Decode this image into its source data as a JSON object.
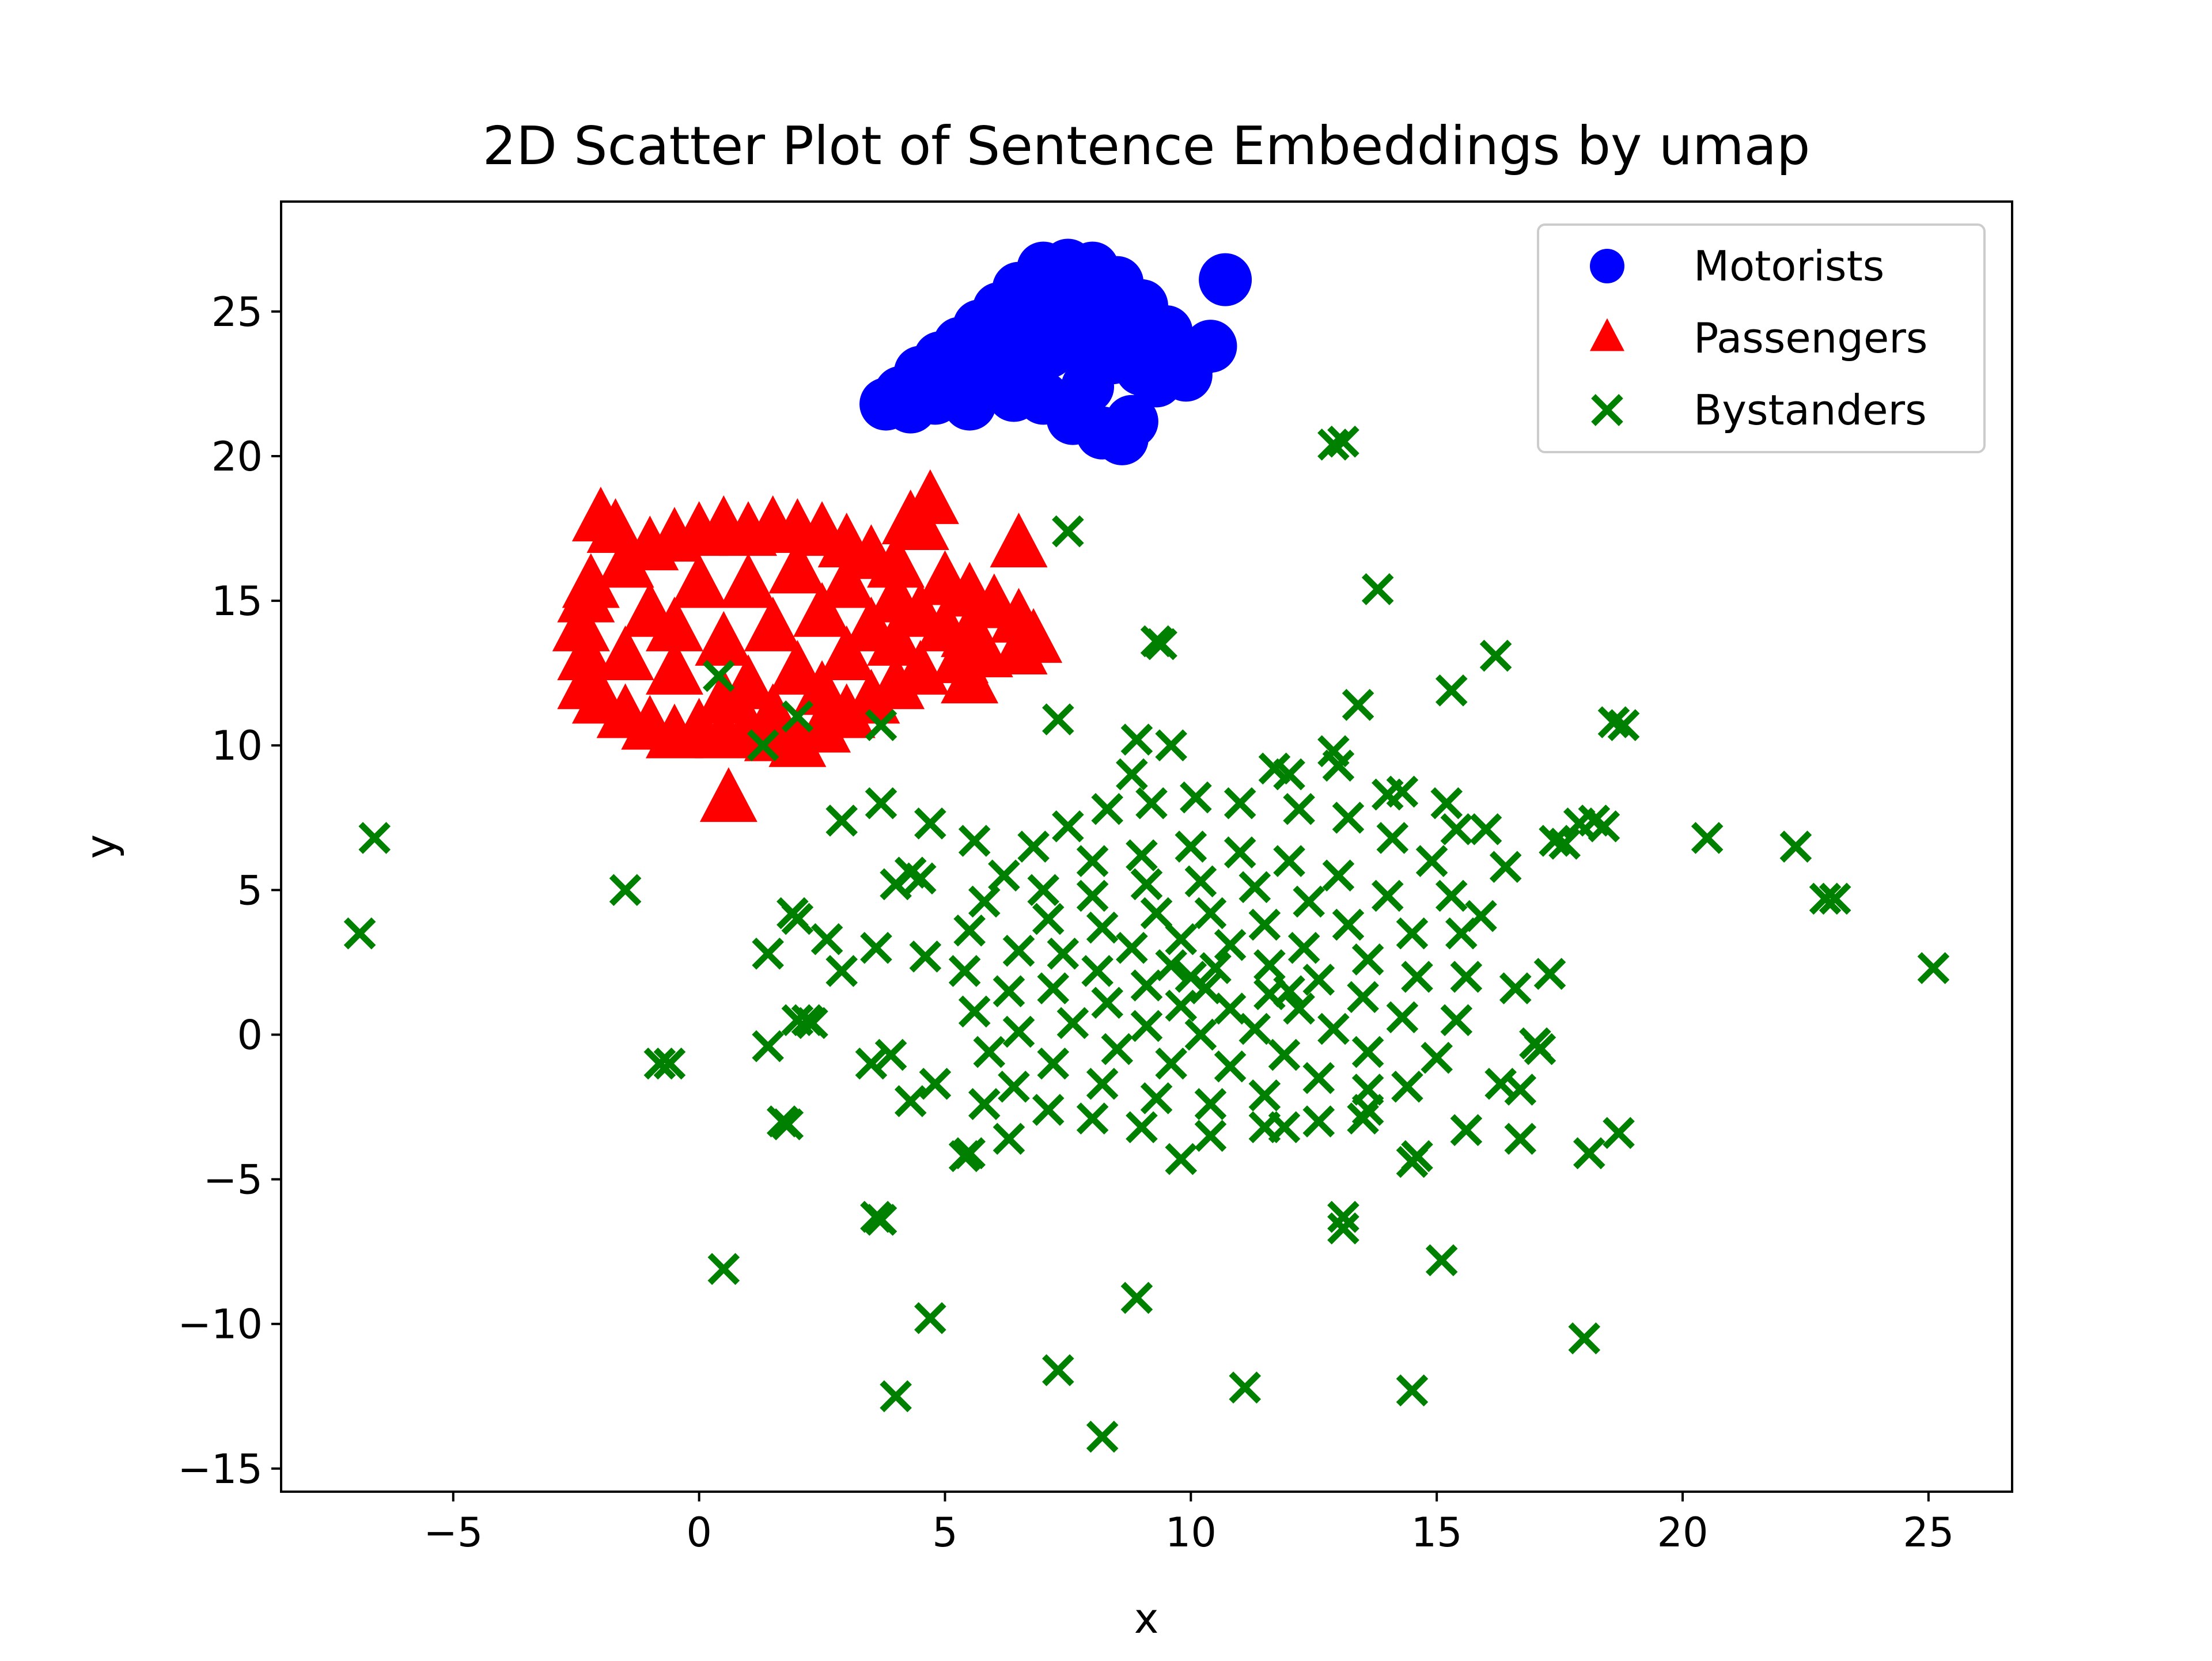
{
  "chart_data": {
    "type": "scatter",
    "title": "2D Scatter Plot of Sentence Embeddings by umap",
    "xlabel": "x",
    "ylabel": "y",
    "xlim": [
      -8.5,
      26.7
    ],
    "ylim": [
      -15.8,
      28.8
    ],
    "xticks": [
      -5,
      0,
      5,
      10,
      15,
      20,
      25
    ],
    "yticks": [
      -15,
      -10,
      -5,
      0,
      5,
      10,
      15,
      20,
      25
    ],
    "xtick_labels": [
      "−5",
      "0",
      "5",
      "10",
      "15",
      "20",
      "25"
    ],
    "ytick_labels": [
      "−15",
      "−10",
      "−5",
      "0",
      "5",
      "10",
      "15",
      "20",
      "25"
    ],
    "grid": false,
    "legend_position": "top-right",
    "series": [
      {
        "name": "Motorists",
        "marker": "circle",
        "color": "#0000ff",
        "points": [
          [
            3.8,
            21.8
          ],
          [
            4.1,
            22.2
          ],
          [
            4.5,
            22.9
          ],
          [
            4.9,
            23.4
          ],
          [
            5.3,
            23.9
          ],
          [
            5.7,
            24.5
          ],
          [
            6.1,
            25.1
          ],
          [
            6.5,
            25.8
          ],
          [
            7.0,
            26.5
          ],
          [
            7.5,
            26.6
          ],
          [
            8.0,
            26.5
          ],
          [
            8.5,
            26.0
          ],
          [
            9.0,
            25.2
          ],
          [
            9.5,
            24.3
          ],
          [
            10.0,
            23.4
          ],
          [
            10.4,
            23.8
          ],
          [
            10.7,
            26.1
          ],
          [
            9.9,
            22.8
          ],
          [
            9.3,
            22.6
          ],
          [
            8.8,
            21.2
          ],
          [
            8.6,
            20.6
          ],
          [
            8.2,
            20.8
          ],
          [
            7.6,
            21.3
          ],
          [
            7.0,
            22.0
          ],
          [
            6.4,
            22.1
          ],
          [
            5.5,
            21.8
          ],
          [
            4.8,
            22.0
          ],
          [
            4.3,
            21.7
          ],
          [
            5.0,
            22.6
          ],
          [
            5.8,
            23.0
          ],
          [
            6.4,
            23.4
          ],
          [
            7.1,
            23.6
          ],
          [
            7.8,
            23.9
          ],
          [
            8.4,
            23.4
          ],
          [
            9.0,
            23.0
          ],
          [
            6.8,
            24.4
          ],
          [
            7.6,
            24.9
          ],
          [
            8.3,
            25.1
          ],
          [
            6.0,
            24.0
          ],
          [
            5.2,
            23.0
          ],
          [
            7.3,
            25.6
          ],
          [
            8.0,
            24.3
          ],
          [
            8.8,
            24.0
          ],
          [
            6.7,
            22.8
          ],
          [
            7.9,
            22.4
          ]
        ]
      },
      {
        "name": "Passengers",
        "marker": "triangle",
        "color": "#ff0000",
        "points": [
          [
            -2.0,
            17.8
          ],
          [
            -1.7,
            17.4
          ],
          [
            -1.5,
            16.2
          ],
          [
            -1.0,
            16.8
          ],
          [
            -0.5,
            17.1
          ],
          [
            0.0,
            17.3
          ],
          [
            0.5,
            17.5
          ],
          [
            1.0,
            17.3
          ],
          [
            1.5,
            17.5
          ],
          [
            2.0,
            17.4
          ],
          [
            2.5,
            17.3
          ],
          [
            3.0,
            16.9
          ],
          [
            3.5,
            16.5
          ],
          [
            4.0,
            16.2
          ],
          [
            4.5,
            17.5
          ],
          [
            4.7,
            18.4
          ],
          [
            4.3,
            17.7
          ],
          [
            6.5,
            16.9
          ],
          [
            5.0,
            15.6
          ],
          [
            5.5,
            15.2
          ],
          [
            6.0,
            14.8
          ],
          [
            6.5,
            14.3
          ],
          [
            6.8,
            13.6
          ],
          [
            6.5,
            13.2
          ],
          [
            5.8,
            13.1
          ],
          [
            5.3,
            12.9
          ],
          [
            5.5,
            12.2
          ],
          [
            4.5,
            12.5
          ],
          [
            4.0,
            12.0
          ],
          [
            3.5,
            11.5
          ],
          [
            3.0,
            11.0
          ],
          [
            2.5,
            10.5
          ],
          [
            2.0,
            10.0
          ],
          [
            1.5,
            10.2
          ],
          [
            1.0,
            10.5
          ],
          [
            0.5,
            10.3
          ],
          [
            0.0,
            10.5
          ],
          [
            -0.5,
            10.3
          ],
          [
            -1.0,
            10.6
          ],
          [
            -1.5,
            11.0
          ],
          [
            -2.0,
            11.5
          ],
          [
            -2.3,
            12.0
          ],
          [
            -2.3,
            13.0
          ],
          [
            -2.4,
            14.0
          ],
          [
            -2.3,
            15.0
          ],
          [
            -2.2,
            15.5
          ],
          [
            0.6,
            8.1
          ],
          [
            -1.5,
            13.0
          ],
          [
            -1.0,
            14.5
          ],
          [
            -0.5,
            12.5
          ],
          [
            0.0,
            15.5
          ],
          [
            0.5,
            13.5
          ],
          [
            1.0,
            12.0
          ],
          [
            1.0,
            15.5
          ],
          [
            1.5,
            14.0
          ],
          [
            2.0,
            12.5
          ],
          [
            2.0,
            16.0
          ],
          [
            2.5,
            14.5
          ],
          [
            3.0,
            13.0
          ],
          [
            3.0,
            15.5
          ],
          [
            3.5,
            14.0
          ],
          [
            4.0,
            13.5
          ],
          [
            4.0,
            15.0
          ],
          [
            4.5,
            14.5
          ],
          [
            5.0,
            14.0
          ],
          [
            5.5,
            13.8
          ],
          [
            0.5,
            11.5
          ],
          [
            -0.5,
            14.0
          ],
          [
            1.5,
            11.0
          ],
          [
            2.5,
            11.8
          ]
        ]
      },
      {
        "name": "Bystanders",
        "marker": "x",
        "color": "#008000",
        "points": [
          [
            -6.6,
            6.8
          ],
          [
            -6.9,
            3.5
          ],
          [
            -1.5,
            5.0
          ],
          [
            -0.8,
            -1.0
          ],
          [
            -0.6,
            -1.0
          ],
          [
            0.4,
            12.4
          ],
          [
            0.5,
            -8.1
          ],
          [
            1.3,
            10.0
          ],
          [
            1.4,
            2.8
          ],
          [
            1.4,
            -0.4
          ],
          [
            1.7,
            -3.0
          ],
          [
            1.8,
            -3.1
          ],
          [
            1.9,
            4.2
          ],
          [
            2.0,
            4.0
          ],
          [
            2.0,
            0.5
          ],
          [
            2.2,
            0.5
          ],
          [
            2.3,
            0.4
          ],
          [
            2.0,
            11.0
          ],
          [
            2.6,
            3.3
          ],
          [
            2.9,
            2.2
          ],
          [
            2.9,
            7.4
          ],
          [
            3.5,
            -1.0
          ],
          [
            3.6,
            3.0
          ],
          [
            3.6,
            -6.3
          ],
          [
            3.7,
            -6.4
          ],
          [
            3.7,
            8.0
          ],
          [
            3.7,
            10.7
          ],
          [
            3.9,
            -0.7
          ],
          [
            4.0,
            5.2
          ],
          [
            4.0,
            -12.5
          ],
          [
            4.3,
            5.6
          ],
          [
            4.5,
            5.4
          ],
          [
            4.3,
            -2.3
          ],
          [
            4.7,
            7.3
          ],
          [
            4.8,
            -1.7
          ],
          [
            4.7,
            -9.8
          ],
          [
            4.6,
            2.7
          ],
          [
            5.4,
            -4.2
          ],
          [
            5.5,
            -4.1
          ],
          [
            5.6,
            6.7
          ],
          [
            5.8,
            -2.4
          ],
          [
            6.3,
            -3.6
          ],
          [
            7.3,
            10.9
          ],
          [
            7.5,
            17.4
          ],
          [
            7.3,
            -11.6
          ],
          [
            8.2,
            -13.9
          ],
          [
            8.9,
            -9.1
          ],
          [
            8.9,
            10.2
          ],
          [
            8.8,
            9.0
          ],
          [
            9.4,
            13.5
          ],
          [
            9.3,
            13.6
          ],
          [
            9.6,
            10.0
          ],
          [
            11.1,
            -12.2
          ],
          [
            11.7,
            9.2
          ],
          [
            12.0,
            9.0
          ],
          [
            11.9,
            -3.2
          ],
          [
            12.9,
            20.4
          ],
          [
            13.1,
            20.5
          ],
          [
            12.9,
            9.8
          ],
          [
            13.0,
            9.3
          ],
          [
            13.1,
            -6.3
          ],
          [
            13.1,
            -6.7
          ],
          [
            13.4,
            11.4
          ],
          [
            13.5,
            -2.9
          ],
          [
            13.6,
            -1.9
          ],
          [
            13.8,
            15.4
          ],
          [
            14.0,
            8.3
          ],
          [
            14.3,
            8.4
          ],
          [
            14.5,
            -12.3
          ],
          [
            14.5,
            -4.4
          ],
          [
            14.6,
            -4.2
          ],
          [
            15.1,
            -7.8
          ],
          [
            15.2,
            8.0
          ],
          [
            15.3,
            11.9
          ],
          [
            15.4,
            7.1
          ],
          [
            15.6,
            -3.3
          ],
          [
            15.9,
            4.1
          ],
          [
            16.0,
            7.1
          ],
          [
            16.2,
            13.1
          ],
          [
            16.3,
            -1.7
          ],
          [
            16.4,
            5.8
          ],
          [
            16.6,
            1.6
          ],
          [
            16.7,
            -3.6
          ],
          [
            16.7,
            -1.9
          ],
          [
            17.0,
            -0.3
          ],
          [
            17.1,
            -0.5
          ],
          [
            17.3,
            2.1
          ],
          [
            17.4,
            6.7
          ],
          [
            17.6,
            6.6
          ],
          [
            17.9,
            7.3
          ],
          [
            18.2,
            7.4
          ],
          [
            18.4,
            7.2
          ],
          [
            18.0,
            -10.5
          ],
          [
            18.1,
            -4.1
          ],
          [
            18.7,
            -3.4
          ],
          [
            18.6,
            10.8
          ],
          [
            18.8,
            10.7
          ],
          [
            20.5,
            6.8
          ],
          [
            22.3,
            6.5
          ],
          [
            22.9,
            4.7
          ],
          [
            23.1,
            4.7
          ],
          [
            25.1,
            2.3
          ],
          [
            6.2,
            5.5
          ],
          [
            6.8,
            6.5
          ],
          [
            7.5,
            7.2
          ],
          [
            8.3,
            7.8
          ],
          [
            9.2,
            8.0
          ],
          [
            10.1,
            8.2
          ],
          [
            11.0,
            8.0
          ],
          [
            12.2,
            7.8
          ],
          [
            13.2,
            7.5
          ],
          [
            14.1,
            6.8
          ],
          [
            14.9,
            6.0
          ],
          [
            15.3,
            4.8
          ],
          [
            15.5,
            3.5
          ],
          [
            15.6,
            2.0
          ],
          [
            15.4,
            0.5
          ],
          [
            15.0,
            -0.8
          ],
          [
            14.4,
            -1.8
          ],
          [
            13.6,
            -2.6
          ],
          [
            12.6,
            -3.0
          ],
          [
            11.5,
            -3.2
          ],
          [
            10.4,
            -3.5
          ],
          [
            9.8,
            -4.3
          ],
          [
            9.0,
            -3.2
          ],
          [
            8.0,
            -2.9
          ],
          [
            7.1,
            -2.6
          ],
          [
            6.4,
            -1.8
          ],
          [
            5.9,
            -0.6
          ],
          [
            5.6,
            0.8
          ],
          [
            5.4,
            2.2
          ],
          [
            5.5,
            3.6
          ],
          [
            5.8,
            4.6
          ],
          [
            7.0,
            5.0
          ],
          [
            8.0,
            6.0
          ],
          [
            9.0,
            6.2
          ],
          [
            10.0,
            6.5
          ],
          [
            11.0,
            6.3
          ],
          [
            12.0,
            6.0
          ],
          [
            13.0,
            5.5
          ],
          [
            14.0,
            4.8
          ],
          [
            14.5,
            3.5
          ],
          [
            14.6,
            2.0
          ],
          [
            14.3,
            0.6
          ],
          [
            13.6,
            -0.6
          ],
          [
            12.6,
            -1.5
          ],
          [
            11.5,
            -2.1
          ],
          [
            10.4,
            -2.4
          ],
          [
            9.3,
            -2.2
          ],
          [
            8.2,
            -1.7
          ],
          [
            7.2,
            -1.0
          ],
          [
            6.5,
            0.1
          ],
          [
            6.3,
            1.5
          ],
          [
            6.5,
            2.9
          ],
          [
            7.1,
            4.0
          ],
          [
            8.0,
            4.8
          ],
          [
            9.1,
            5.2
          ],
          [
            10.2,
            5.3
          ],
          [
            11.3,
            5.1
          ],
          [
            12.4,
            4.6
          ],
          [
            13.2,
            3.8
          ],
          [
            13.6,
            2.6
          ],
          [
            13.5,
            1.3
          ],
          [
            12.9,
            0.2
          ],
          [
            11.9,
            -0.7
          ],
          [
            10.8,
            -1.1
          ],
          [
            9.6,
            -1.0
          ],
          [
            8.5,
            -0.5
          ],
          [
            7.6,
            0.4
          ],
          [
            7.2,
            1.6
          ],
          [
            7.4,
            2.8
          ],
          [
            8.2,
            3.7
          ],
          [
            9.3,
            4.2
          ],
          [
            10.4,
            4.2
          ],
          [
            11.5,
            3.8
          ],
          [
            12.3,
            3.0
          ],
          [
            12.6,
            1.9
          ],
          [
            12.2,
            0.9
          ],
          [
            11.3,
            0.2
          ],
          [
            10.2,
            0.0
          ],
          [
            9.1,
            0.3
          ],
          [
            8.3,
            1.1
          ],
          [
            8.1,
            2.2
          ],
          [
            8.8,
            3.0
          ],
          [
            9.8,
            3.3
          ],
          [
            10.8,
            3.1
          ],
          [
            11.6,
            2.4
          ],
          [
            11.6,
            1.4
          ],
          [
            10.8,
            0.9
          ],
          [
            9.8,
            1.0
          ],
          [
            9.1,
            1.7
          ],
          [
            9.6,
            2.4
          ],
          [
            10.5,
            2.3
          ],
          [
            10.3,
            1.6
          ],
          [
            12.0,
            1.5
          ],
          [
            10.0,
            2.0
          ]
        ]
      }
    ]
  }
}
